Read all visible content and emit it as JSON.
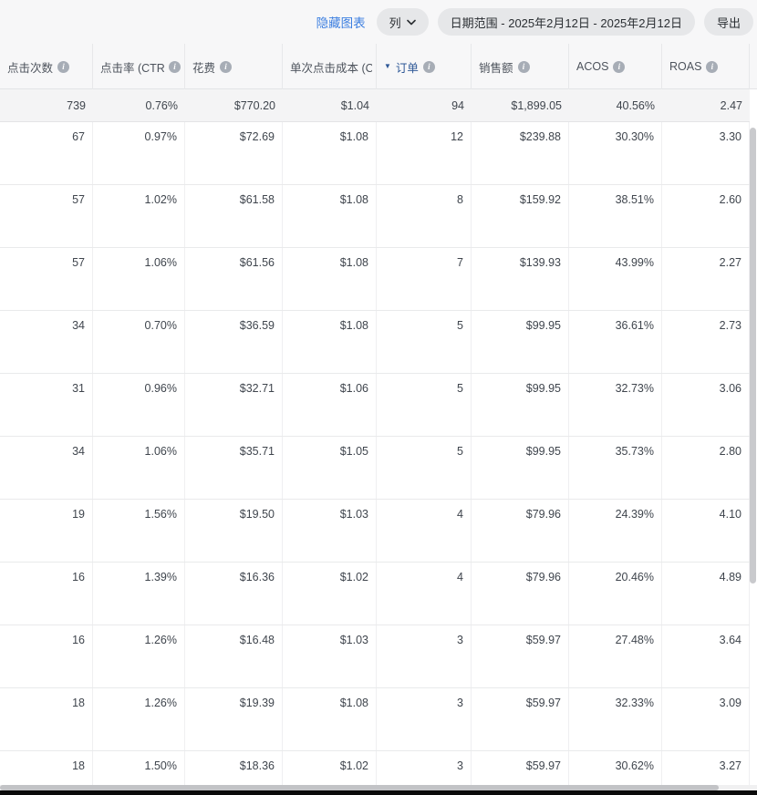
{
  "toolbar": {
    "hide_chart_label": "隐藏图表",
    "columns_label": "列",
    "date_range_label": "日期范围 - 2025年2月12日 - 2025年2月12日",
    "export_label": "导出"
  },
  "table": {
    "columns": [
      {
        "key": "clicks",
        "label": "点击次数",
        "sorted": false
      },
      {
        "key": "ctr",
        "label": "点击率 (CTR)",
        "sorted": false
      },
      {
        "key": "spend",
        "label": "花费",
        "sorted": false
      },
      {
        "key": "cpc",
        "label": "单次点击成本 (CPC)",
        "sorted": false
      },
      {
        "key": "orders",
        "label": "订单",
        "sorted": true
      },
      {
        "key": "sales",
        "label": "销售额",
        "sorted": false
      },
      {
        "key": "acos",
        "label": "ACOS",
        "sorted": false
      },
      {
        "key": "roas",
        "label": "ROAS",
        "sorted": false
      }
    ],
    "totals": [
      "739",
      "0.76%",
      "$770.20",
      "$1.04",
      "94",
      "$1,899.05",
      "40.56%",
      "2.47"
    ],
    "rows": [
      [
        "67",
        "0.97%",
        "$72.69",
        "$1.08",
        "12",
        "$239.88",
        "30.30%",
        "3.30"
      ],
      [
        "57",
        "1.02%",
        "$61.58",
        "$1.08",
        "8",
        "$159.92",
        "38.51%",
        "2.60"
      ],
      [
        "57",
        "1.06%",
        "$61.56",
        "$1.08",
        "7",
        "$139.93",
        "43.99%",
        "2.27"
      ],
      [
        "34",
        "0.70%",
        "$36.59",
        "$1.08",
        "5",
        "$99.95",
        "36.61%",
        "2.73"
      ],
      [
        "31",
        "0.96%",
        "$32.71",
        "$1.06",
        "5",
        "$99.95",
        "32.73%",
        "3.06"
      ],
      [
        "34",
        "1.06%",
        "$35.71",
        "$1.05",
        "5",
        "$99.95",
        "35.73%",
        "2.80"
      ],
      [
        "19",
        "1.56%",
        "$19.50",
        "$1.03",
        "4",
        "$79.96",
        "24.39%",
        "4.10"
      ],
      [
        "16",
        "1.39%",
        "$16.36",
        "$1.02",
        "4",
        "$79.96",
        "20.46%",
        "4.89"
      ],
      [
        "16",
        "1.26%",
        "$16.48",
        "$1.03",
        "3",
        "$59.97",
        "27.48%",
        "3.64"
      ],
      [
        "18",
        "1.26%",
        "$19.39",
        "$1.08",
        "3",
        "$59.97",
        "32.33%",
        "3.09"
      ],
      [
        "18",
        "1.50%",
        "$18.36",
        "$1.02",
        "3",
        "$59.97",
        "30.62%",
        "3.27"
      ]
    ]
  },
  "colors": {
    "link_blue": "#3b7ee0",
    "sorted_column_blue": "#2d5796",
    "pill_background": "#e6e7e9",
    "toolbar_background": "#f7f7f8",
    "totals_row_background": "#f4f4f5"
  }
}
